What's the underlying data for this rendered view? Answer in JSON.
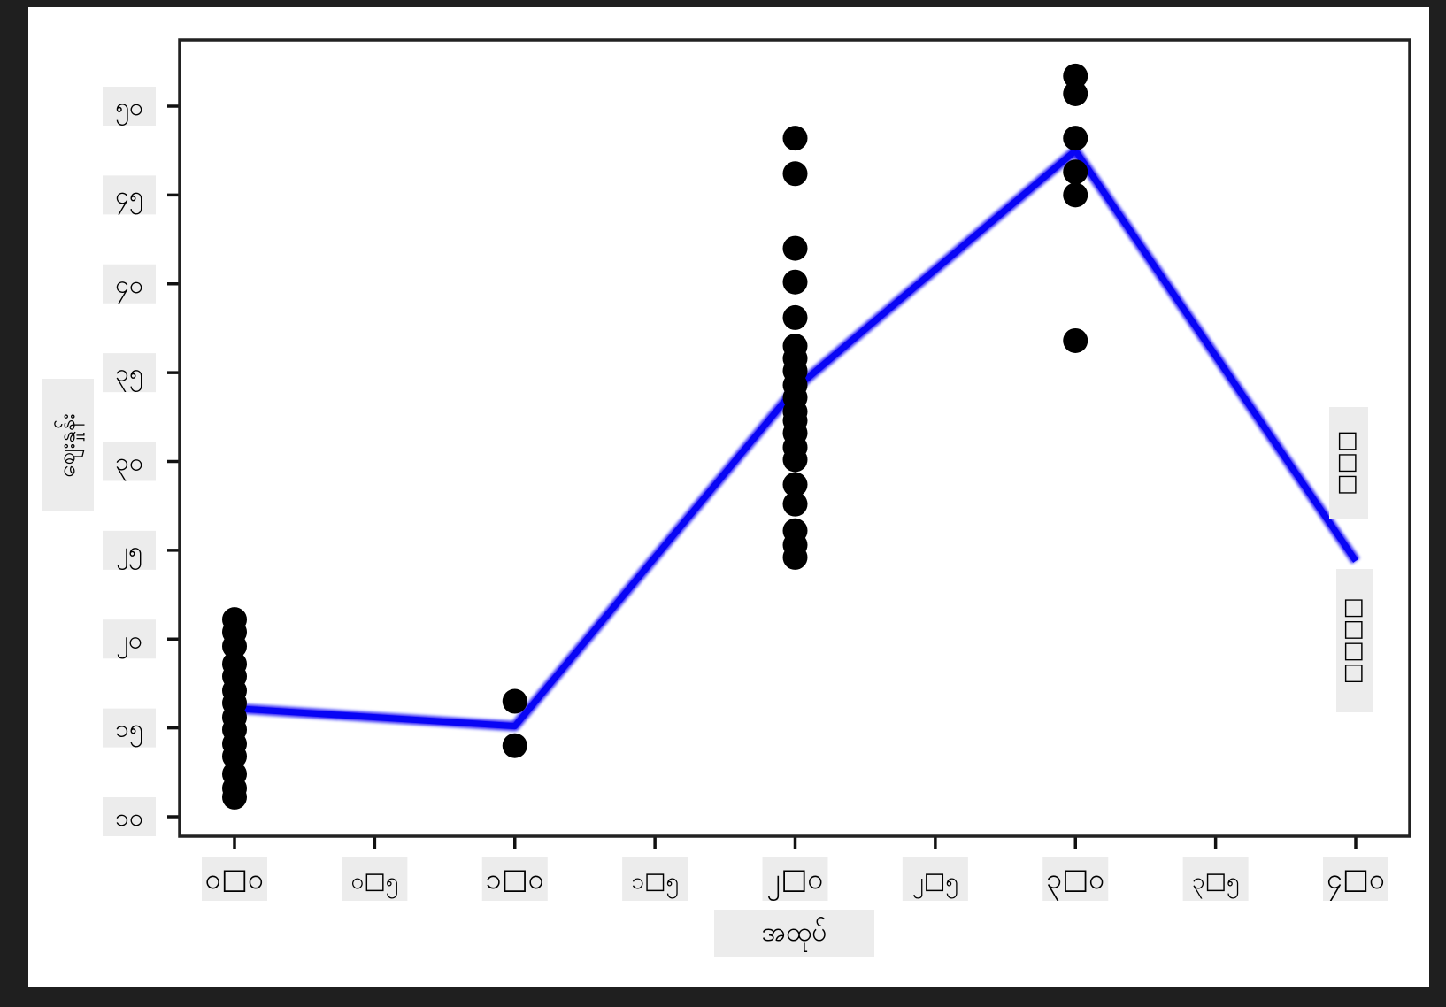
{
  "colors": {
    "frame": "#1f1f1f",
    "paper": "#ffffff",
    "label_bg": "#ececec",
    "spine": "#222222",
    "tick": "#111111",
    "mean_line": "#0805f5",
    "marker": "#000000",
    "text": "#000000"
  },
  "chart_data": {
    "type": "scatter",
    "title": "",
    "x_title": "အထုပ်",
    "y_title": "ဈေးနှုန်း",
    "xlim": [
      -0.2,
      4.19
    ],
    "ylim": [
      8.9,
      53.7
    ],
    "grid": false,
    "legend_position": "none",
    "x_ticks": [
      {
        "value": 0.0,
        "label": "၀□၀",
        "major": true
      },
      {
        "value": 0.5,
        "label": "၀□၅",
        "major": false
      },
      {
        "value": 1.0,
        "label": "၁□၀",
        "major": true
      },
      {
        "value": 1.5,
        "label": "၁□၅",
        "major": false
      },
      {
        "value": 2.0,
        "label": "၂□၀",
        "major": true
      },
      {
        "value": 2.5,
        "label": "၂□၅",
        "major": false
      },
      {
        "value": 3.0,
        "label": "၃□၀",
        "major": true
      },
      {
        "value": 3.5,
        "label": "၃□၅",
        "major": false
      },
      {
        "value": 4.0,
        "label": "၄□၀",
        "major": true
      }
    ],
    "y_ticks": [
      {
        "value": 10,
        "label": "၁၀"
      },
      {
        "value": 15,
        "label": "၁၅"
      },
      {
        "value": 20,
        "label": "၂၀"
      },
      {
        "value": 25,
        "label": "၂၅"
      },
      {
        "value": 30,
        "label": "၃၀"
      },
      {
        "value": 35,
        "label": "၃၅"
      },
      {
        "value": 40,
        "label": "၄၀"
      },
      {
        "value": 45,
        "label": "၄၅"
      },
      {
        "value": 50,
        "label": "၅၀"
      }
    ],
    "scatter_clusters": [
      {
        "x": 0,
        "values": [
          21.1,
          20.4,
          19.6,
          18.6,
          17.9,
          17.1,
          16.4,
          15.6,
          14.9,
          14.1,
          13.4,
          12.4,
          11.6,
          11.1
        ]
      },
      {
        "x": 1,
        "values": [
          16.5,
          14.0
        ]
      },
      {
        "x": 2,
        "values": [
          48.2,
          46.2,
          42.0,
          40.1,
          38.1,
          36.5,
          35.8,
          35.1,
          34.3,
          33.6,
          32.8,
          32.3,
          31.6,
          30.8,
          30.1,
          28.7,
          27.6,
          26.1,
          25.3,
          24.6
        ]
      },
      {
        "x": 3,
        "values": [
          51.7,
          50.7,
          48.2,
          46.3,
          45.0,
          36.8
        ]
      }
    ],
    "mean_line": {
      "x": [
        0,
        1,
        2,
        3,
        4
      ],
      "y": [
        16.1,
        15.1,
        34.1,
        47.5,
        24.4
      ]
    },
    "annotations": [
      {
        "text": "□□□",
        "orientation": "vertical"
      },
      {
        "text": "□□□□",
        "orientation": "vertical"
      }
    ]
  }
}
